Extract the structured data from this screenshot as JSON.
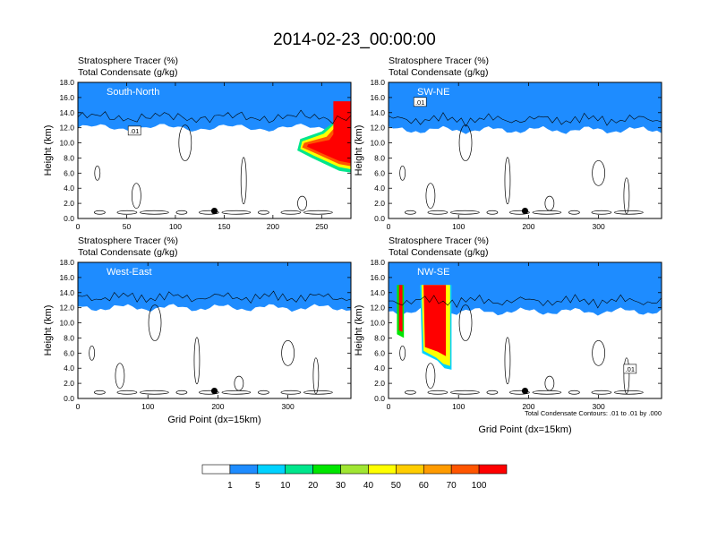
{
  "title": "2014-02-23_00:00:00",
  "colorbar": {
    "labels": [
      "1",
      "5",
      "10",
      "20",
      "30",
      "40",
      "50",
      "60",
      "70",
      "100"
    ],
    "colors": [
      "#ffffff",
      "#1e8cff",
      "#00d2ff",
      "#00e68c",
      "#00e600",
      "#a0e632",
      "#ffff00",
      "#ffcd00",
      "#ff9b00",
      "#ff5500",
      "#ff0000"
    ]
  },
  "chart_data": [
    {
      "type": "heatmap",
      "panel_label": "South-North",
      "subtitle_line1": "Stratosphere Tracer   (%)",
      "subtitle_line2": "Total Condensate   (g/kg)",
      "ylabel": "Height (km)",
      "xlabel": "",
      "xlim": [
        0,
        280
      ],
      "ylim": [
        0,
        18
      ],
      "xticks": [
        "0",
        "50",
        "100",
        "150",
        "200",
        "250"
      ],
      "yticks": [
        "0.0",
        "2.0",
        "4.0",
        "6.0",
        "8.0",
        "10.0",
        "12.0",
        "14.0",
        "16.0",
        "18.0"
      ],
      "tracer_base_km": 15.0,
      "feature": "tropopause fold descending to ~6 km at x=230-280",
      "contour_label": ".01",
      "marker_x": 140,
      "marker_y": 1.0
    },
    {
      "type": "heatmap",
      "panel_label": "SW-NE",
      "subtitle_line1": "Stratosphere Tracer   (%)",
      "subtitle_line2": "Total Condensate   (g/kg)",
      "ylabel": "Height (km)",
      "xlabel": "",
      "xlim": [
        0,
        390
      ],
      "ylim": [
        0,
        18
      ],
      "xticks": [
        "0",
        "100",
        "200",
        "300"
      ],
      "yticks": [
        "0.0",
        "2.0",
        "4.0",
        "6.0",
        "8.0",
        "10.0",
        "12.0",
        "14.0",
        "16.0",
        "18.0"
      ],
      "tracer_base_km": 14.7,
      "feature": "",
      "contour_label": ".01",
      "marker_x": 195,
      "marker_y": 1.0
    },
    {
      "type": "heatmap",
      "panel_label": "West-East",
      "subtitle_line1": "Stratosphere Tracer   (%)",
      "subtitle_line2": "Total Condensate   (g/kg)",
      "ylabel": "Height (km)",
      "xlabel": "Grid Point (dx=15km)",
      "xlim": [
        0,
        390
      ],
      "ylim": [
        0,
        18
      ],
      "xticks": [
        "0",
        "100",
        "200",
        "300"
      ],
      "yticks": [
        "0.0",
        "2.0",
        "4.0",
        "6.0",
        "8.0",
        "10.0",
        "12.0",
        "14.0",
        "16.0",
        "18.0"
      ],
      "tracer_base_km": 15.0,
      "feature": "",
      "contour_label": "",
      "marker_x": 195,
      "marker_y": 1.0
    },
    {
      "type": "heatmap",
      "panel_label": "NW-SE",
      "subtitle_line1": "Stratosphere Tracer   (%)",
      "subtitle_line2": "Total Condensate   (g/kg)",
      "ylabel": "Height (km)",
      "xlabel": "Grid Point (dx=15km)",
      "xlim": [
        0,
        390
      ],
      "ylim": [
        0,
        18
      ],
      "xticks": [
        "0",
        "100",
        "200",
        "300"
      ],
      "yticks": [
        "0.0",
        "2.0",
        "4.0",
        "6.0",
        "8.0",
        "10.0",
        "12.0",
        "14.0",
        "16.0",
        "18.0"
      ],
      "tracer_base_km": 14.5,
      "feature": "deep intrusions near x=20-30 and x=45-85 reaching ~4 km",
      "contour_label": ".01",
      "marker_x": 195,
      "marker_y": 1.0,
      "note": "Total Condensate Contours: .01 to .01 by .000"
    }
  ]
}
